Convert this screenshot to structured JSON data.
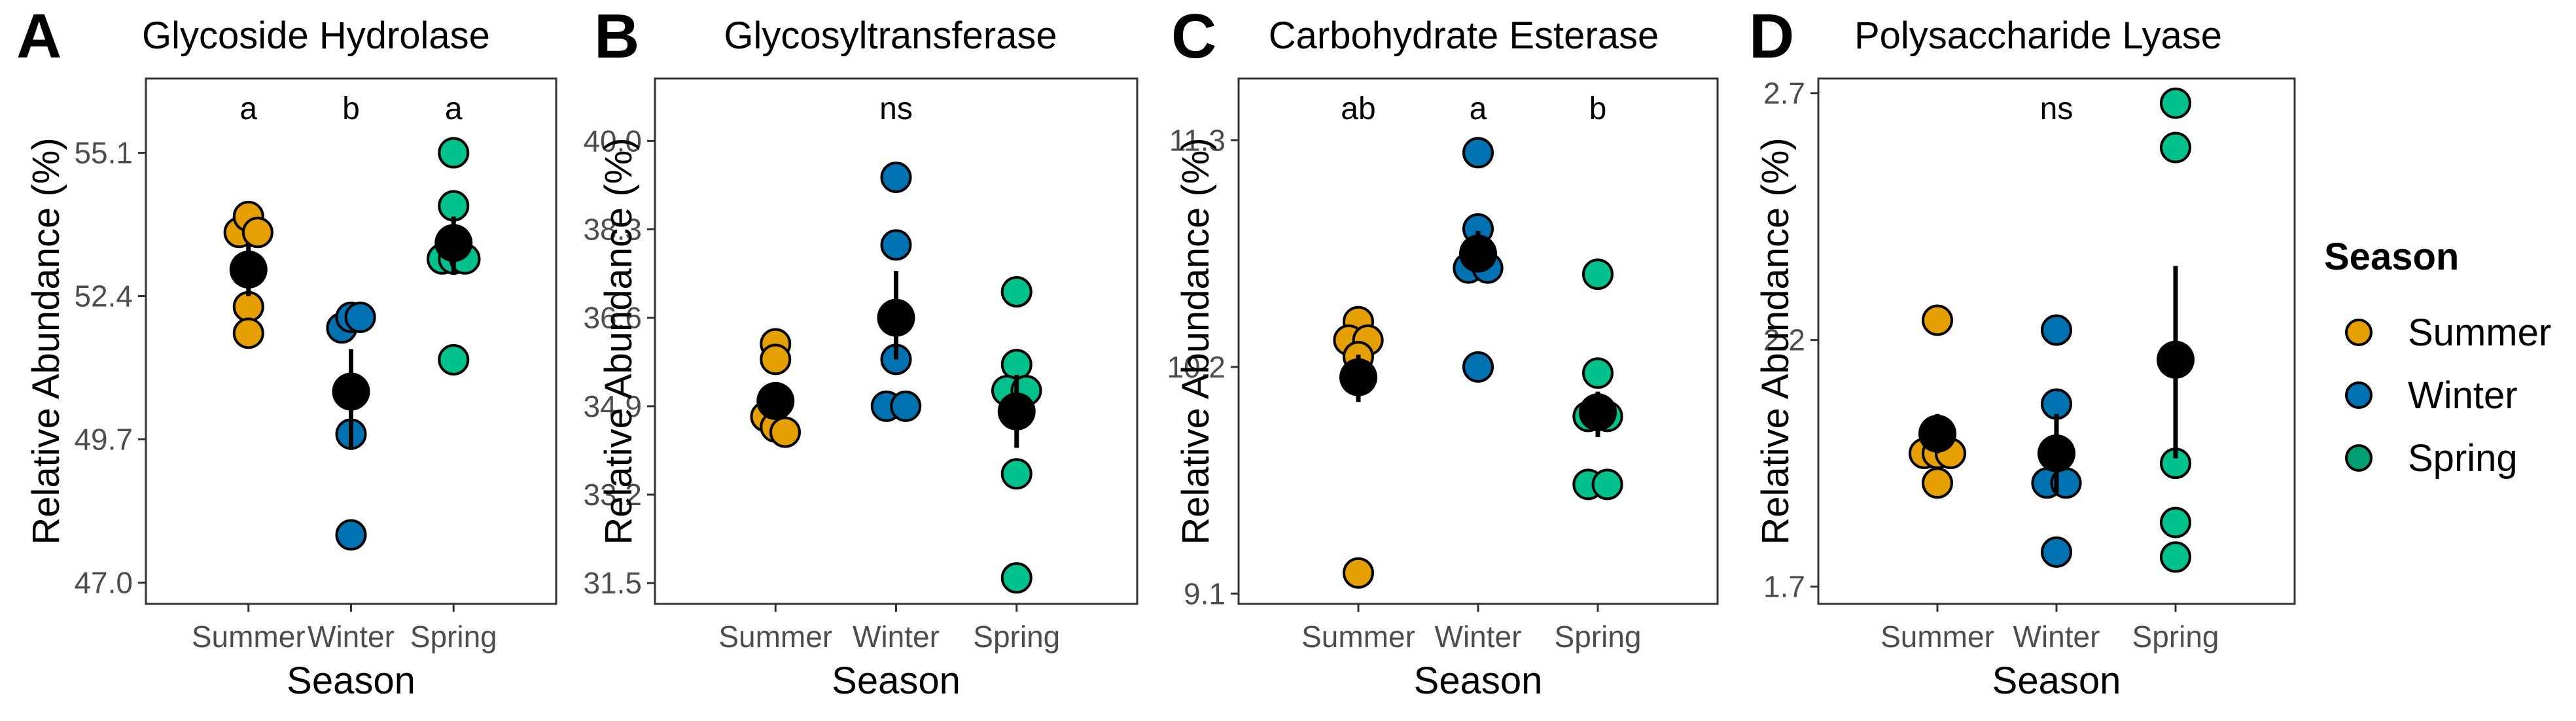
{
  "legend": {
    "title": "Season",
    "items": [
      {
        "label": "Summer",
        "color": "#E69F00"
      },
      {
        "label": "Winter",
        "color": "#0072B2"
      },
      {
        "label": "Spring",
        "color": "#009E73"
      }
    ]
  },
  "colors": {
    "Summer": "#E69F00",
    "Winter": "#0072B2",
    "Spring": "#00C08B",
    "mean": "#000000",
    "panel_border": "#333333"
  },
  "chart_data": [
    {
      "type": "scatter",
      "panel": "A",
      "title": "Glycoside Hydrolase",
      "xlabel": "Season",
      "ylabel": "Relative Abundance (%)",
      "categories": [
        "Summer",
        "Winter",
        "Spring"
      ],
      "ylim": [
        46.6,
        56.5
      ],
      "yticks": [
        47.0,
        49.7,
        52.4,
        55.1
      ],
      "ytick_labels": [
        "47.0",
        "49.7",
        "52.4",
        "55.1"
      ],
      "significance": [
        "a",
        "b",
        "a"
      ],
      "series": [
        {
          "name": "Summer",
          "points": [
            [
              -0.09,
              53.6
            ],
            [
              0.0,
              53.9
            ],
            [
              0.09,
              53.6
            ],
            [
              0.0,
              52.2
            ],
            [
              0.0,
              51.7
            ],
            [
              0.0,
              52.9
            ]
          ],
          "mean": 52.9,
          "err": [
            52.4,
            53.4
          ]
        },
        {
          "name": "Winter",
          "points": [
            [
              -0.09,
              51.8
            ],
            [
              0.0,
              52.0
            ],
            [
              0.09,
              52.0
            ],
            [
              0.0,
              49.8
            ],
            [
              0.0,
              47.9
            ]
          ],
          "mean": 50.6,
          "err": [
            49.5,
            51.4
          ]
        },
        {
          "name": "Spring",
          "points": [
            [
              0.0,
              55.1
            ],
            [
              0.0,
              54.1
            ],
            [
              -0.11,
              53.1
            ],
            [
              0.0,
              53.1
            ],
            [
              0.11,
              53.1
            ],
            [
              0.0,
              51.2
            ]
          ],
          "mean": 53.4,
          "err": [
            52.8,
            53.9
          ]
        }
      ]
    },
    {
      "type": "scatter",
      "panel": "B",
      "title": "Glycosyltransferase",
      "xlabel": "Season",
      "ylabel": "Relative Abundance (%)",
      "categories": [
        "Summer",
        "Winter",
        "Spring"
      ],
      "ylim": [
        31.1,
        41.2
      ],
      "yticks": [
        31.5,
        33.2,
        34.9,
        36.6,
        38.3,
        40.0
      ],
      "ytick_labels": [
        "31.5",
        "33.2",
        "34.9",
        "36.6",
        "38.3",
        "40.0"
      ],
      "significance": [
        "",
        "ns",
        ""
      ],
      "series": [
        {
          "name": "Summer",
          "points": [
            [
              0.0,
              36.1
            ],
            [
              0.0,
              35.8
            ],
            [
              -0.08,
              34.7
            ],
            [
              0.0,
              34.5
            ],
            [
              0.08,
              34.4
            ]
          ],
          "mean": 35.0,
          "err": [
            34.7,
            35.3
          ]
        },
        {
          "name": "Winter",
          "points": [
            [
              0.0,
              39.3
            ],
            [
              0.0,
              38.0
            ],
            [
              0.0,
              35.8
            ],
            [
              -0.08,
              34.9
            ],
            [
              0.08,
              34.9
            ]
          ],
          "mean": 36.6,
          "err": [
            35.8,
            37.5
          ]
        },
        {
          "name": "Spring",
          "points": [
            [
              0.0,
              37.1
            ],
            [
              0.0,
              35.7
            ],
            [
              -0.08,
              35.2
            ],
            [
              0.08,
              35.2
            ],
            [
              0.0,
              33.6
            ],
            [
              0.0,
              31.6
            ]
          ],
          "mean": 34.8,
          "err": [
            34.1,
            35.5
          ]
        }
      ]
    },
    {
      "type": "scatter",
      "panel": "C",
      "title": "Carbohydrate Esterase",
      "xlabel": "Season",
      "ylabel": "Relative Abundance (%)",
      "categories": [
        "Summer",
        "Winter",
        "Spring"
      ],
      "ylim": [
        9.05,
        11.6
      ],
      "yticks": [
        9.1,
        10.2,
        11.3
      ],
      "ytick_labels": [
        "9.1",
        "10.2",
        "11.3"
      ],
      "significance": [
        "ab",
        "a",
        "b"
      ],
      "series": [
        {
          "name": "Summer",
          "points": [
            [
              0.0,
              10.42
            ],
            [
              -0.08,
              10.33
            ],
            [
              0.08,
              10.33
            ],
            [
              0.0,
              10.25
            ],
            [
              0.0,
              9.2
            ]
          ],
          "mean": 10.15,
          "err": [
            10.03,
            10.26
          ]
        },
        {
          "name": "Winter",
          "points": [
            [
              0.0,
              11.24
            ],
            [
              0.0,
              10.87
            ],
            [
              -0.08,
              10.68
            ],
            [
              0.08,
              10.68
            ],
            [
              0.0,
              10.2
            ]
          ],
          "mean": 10.75,
          "err": [
            10.66,
            10.86
          ]
        },
        {
          "name": "Spring",
          "points": [
            [
              0.0,
              10.65
            ],
            [
              0.0,
              10.17
            ],
            [
              -0.08,
              9.96
            ],
            [
              0.08,
              9.96
            ],
            [
              -0.08,
              9.63
            ],
            [
              0.08,
              9.63
            ]
          ],
          "mean": 9.98,
          "err": [
            9.86,
            10.08
          ]
        }
      ]
    },
    {
      "type": "scatter",
      "panel": "D",
      "title": "Polysaccharide Lyase",
      "xlabel": "Season",
      "ylabel": "Relative Abundance (%)",
      "categories": [
        "Summer",
        "Winter",
        "Spring"
      ],
      "ylim": [
        1.665,
        2.73
      ],
      "yticks": [
        1.7,
        2.2,
        2.7
      ],
      "ytick_labels": [
        "1.7",
        "2.2",
        "2.7"
      ],
      "significance": [
        "",
        "ns",
        ""
      ],
      "series": [
        {
          "name": "Summer",
          "points": [
            [
              0.0,
              2.24
            ],
            [
              -0.11,
              1.97
            ],
            [
              0.0,
              1.97
            ],
            [
              0.11,
              1.97
            ],
            [
              0.0,
              1.91
            ]
          ],
          "mean": 2.01,
          "err": [
            1.97,
            2.05
          ]
        },
        {
          "name": "Winter",
          "points": [
            [
              0.0,
              2.22
            ],
            [
              0.0,
              2.07
            ],
            [
              -0.08,
              1.91
            ],
            [
              0.08,
              1.91
            ],
            [
              0.0,
              1.77
            ]
          ],
          "mean": 1.97,
          "err": [
            1.89,
            2.05
          ]
        },
        {
          "name": "Spring",
          "points": [
            [
              0.0,
              2.68
            ],
            [
              0.0,
              2.59
            ],
            [
              0.0,
              1.95
            ],
            [
              0.0,
              1.83
            ],
            [
              0.0,
              1.76
            ]
          ],
          "mean": 2.16,
          "err": [
            1.96,
            2.35
          ]
        }
      ]
    }
  ]
}
